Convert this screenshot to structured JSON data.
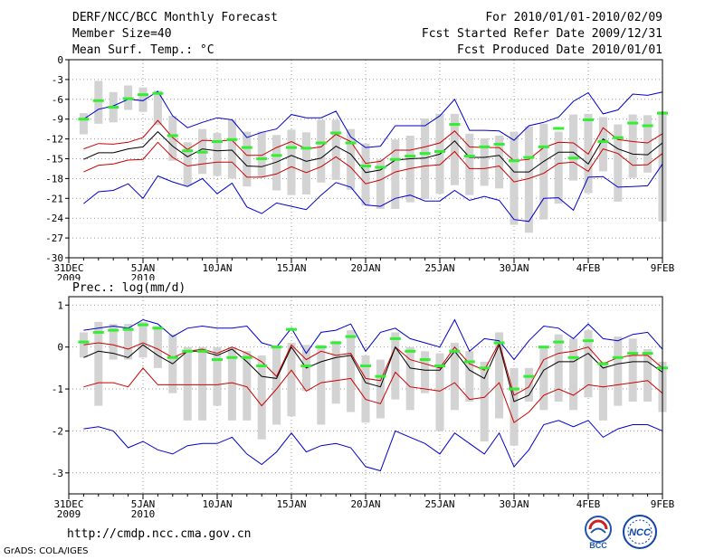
{
  "header": {
    "title": "DERF/NCC/BCC Monthly Forecast",
    "member_size": "Member Size=40",
    "variable": "Mean Surf. Temp.: °C",
    "period": "For 2010/01/01-2010/02/09",
    "start_date": "Fcst Started Refer Date 2009/12/31",
    "produced_date": "Fcst Produced Date 2010/01/01"
  },
  "precip_label": "Prec.: log(mm/d)",
  "url": "http://cmdp.ncc.cma.gov.cn",
  "credit": "GrADS: COLA/IGES",
  "logos": {
    "bcc": "BCC",
    "ncc": "NCC"
  },
  "colors": {
    "blue": "#0000cc",
    "red": "#cc0000",
    "mean": "#000000",
    "box": "#d3d3d3",
    "obs": "#33ee33",
    "grid": "#999999"
  },
  "chart_data": [
    {
      "type": "line",
      "name": "temperature",
      "title": "Mean Surf. Temp.: °C",
      "ylabel": "°C",
      "ylim": [
        -30,
        0
      ],
      "y_ticks": [
        0,
        -3,
        -6,
        -9,
        -12,
        -15,
        -18,
        -21,
        -24,
        -27,
        -30
      ],
      "x_range": [
        0,
        40
      ],
      "x_ticks": [
        {
          "x": 0,
          "label": "31DEC",
          "sub": "2009"
        },
        {
          "x": 5,
          "label": "5JAN",
          "sub": "2010"
        },
        {
          "x": 10,
          "label": "10JAN"
        },
        {
          "x": 15,
          "label": "15JAN"
        },
        {
          "x": 20,
          "label": "20JAN"
        },
        {
          "x": 25,
          "label": "25JAN"
        },
        {
          "x": 30,
          "label": "30JAN"
        },
        {
          "x": 35,
          "label": "4FEB"
        },
        {
          "x": 40,
          "label": "9FEB"
        }
      ],
      "x": [
        1,
        2,
        3,
        4,
        5,
        6,
        7,
        8,
        9,
        10,
        11,
        12,
        13,
        14,
        15,
        16,
        17,
        18,
        19,
        20,
        21,
        22,
        23,
        24,
        25,
        26,
        27,
        28,
        29,
        30,
        31,
        32,
        33,
        34,
        35,
        36,
        37,
        38,
        39,
        40
      ],
      "series": [
        {
          "name": "max",
          "color": "blue",
          "values": [
            -9,
            -7.5,
            -7,
            -6,
            -6.2,
            -4.8,
            -8.5,
            -10.3,
            -9.5,
            -8.8,
            -9.1,
            -11.8,
            -11,
            -10.5,
            -8.3,
            -8.8,
            -8.8,
            -7.8,
            -11.7,
            -13.3,
            -13.1,
            -10,
            -10,
            -10,
            -8.5,
            -6,
            -10.7,
            -10.7,
            -10.8,
            -12.2,
            -10,
            -9.5,
            -8.7,
            -6.3,
            -5,
            -8.2,
            -7.6,
            -5.2,
            -5.4,
            -4.9
          ]
        },
        {
          "name": "p80",
          "color": "red",
          "values": [
            -13.5,
            -12.7,
            -12.8,
            -12.5,
            -11.8,
            -9.2,
            -11.8,
            -13.6,
            -12.2,
            -12.3,
            -12.2,
            -14.5,
            -14.5,
            -13.3,
            -12.4,
            -13.5,
            -13.2,
            -11.3,
            -12.4,
            -15.7,
            -15.4,
            -13.7,
            -13.7,
            -13.2,
            -12.6,
            -10.8,
            -13.2,
            -13.3,
            -13.3,
            -15.3,
            -15.1,
            -13.3,
            -12.5,
            -12.6,
            -14.3,
            -10.3,
            -12.1,
            -12.4,
            -12.6,
            -11.2
          ]
        },
        {
          "name": "mean",
          "color": "mean",
          "values": [
            -15.1,
            -14.1,
            -14.1,
            -13.5,
            -13.2,
            -10.9,
            -13.1,
            -14.7,
            -13.5,
            -13.8,
            -13.7,
            -16.1,
            -16.2,
            -15.5,
            -14.5,
            -15.4,
            -14.9,
            -13.1,
            -14.3,
            -17.1,
            -16.7,
            -15.2,
            -15,
            -14.9,
            -14.3,
            -12.3,
            -14.8,
            -14.8,
            -14.5,
            -17,
            -17,
            -15.4,
            -14,
            -14,
            -15.8,
            -12,
            -13.5,
            -14.3,
            -14.4,
            -12.6
          ]
        },
        {
          "name": "p20",
          "color": "red",
          "values": [
            -17,
            -16,
            -15.8,
            -15.2,
            -15.1,
            -12.5,
            -14.8,
            -16.1,
            -15.8,
            -15.5,
            -15.5,
            -17.8,
            -17.8,
            -17.3,
            -16.2,
            -17.1,
            -16.2,
            -14.7,
            -16.3,
            -18.8,
            -18.2,
            -17,
            -16.5,
            -16.1,
            -15.9,
            -13.9,
            -16.5,
            -16.5,
            -16.1,
            -18.5,
            -18,
            -17.2,
            -15.7,
            -15.5,
            -16.9,
            -13.5,
            -14.2,
            -16,
            -15.9,
            -14.2
          ]
        },
        {
          "name": "min",
          "color": "blue",
          "values": [
            -21.8,
            -20,
            -19.8,
            -18.8,
            -21,
            -17.6,
            -18.5,
            -19.2,
            -18,
            -20.3,
            -18.7,
            -22.3,
            -23.3,
            -21.7,
            -22.2,
            -22.7,
            -20.5,
            -18.6,
            -19.3,
            -22,
            -22.2,
            -21,
            -20.5,
            -21.4,
            -21.4,
            -19.8,
            -21.3,
            -20.7,
            -21.3,
            -24.2,
            -24.5,
            -21,
            -20.9,
            -22.8,
            -17.8,
            -17.7,
            -19.3,
            -19.2,
            -19.1,
            -15.8
          ]
        }
      ],
      "box_bounds": [
        {
          "low": -11.3,
          "high": -8.1
        },
        {
          "low": -9.7,
          "high": -3.2
        },
        {
          "low": -9.5,
          "high": -4.9
        },
        {
          "low": -7.6,
          "high": -3.9
        },
        {
          "low": -7.9,
          "high": -4.2
        },
        {
          "low": -9.9,
          "high": -4.7
        },
        {
          "low": -15.3,
          "high": -8.5
        },
        {
          "low": -19.1,
          "high": -12.5
        },
        {
          "low": -17.3,
          "high": -10.5
        },
        {
          "low": -17.6,
          "high": -11.1
        },
        {
          "low": -18,
          "high": -9.1
        },
        {
          "low": -19.2,
          "high": -10.9
        },
        {
          "low": -17.8,
          "high": -10.9
        },
        {
          "low": -19.8,
          "high": -11.4
        },
        {
          "low": -20.5,
          "high": -10.6
        },
        {
          "low": -20.4,
          "high": -11
        },
        {
          "low": -18.6,
          "high": -9.1
        },
        {
          "low": -18.2,
          "high": -9.1
        },
        {
          "low": -19.7,
          "high": -10.5
        },
        {
          "low": -22.1,
          "high": -12.7
        },
        {
          "low": -22.6,
          "high": -15.1
        },
        {
          "low": -22.6,
          "high": -12.1
        },
        {
          "low": -21.6,
          "high": -11.5
        },
        {
          "low": -21.1,
          "high": -8.9
        },
        {
          "low": -20.3,
          "high": -8.2
        },
        {
          "low": -19,
          "high": -8.2
        },
        {
          "low": -20.5,
          "high": -11.2
        },
        {
          "low": -19.1,
          "high": -11.9
        },
        {
          "low": -19.5,
          "high": -11.5
        },
        {
          "low": -25,
          "high": -10.9
        },
        {
          "low": -26.2,
          "high": -10.1
        },
        {
          "low": -24.2,
          "high": -9.7
        },
        {
          "low": -21.8,
          "high": -10.9
        },
        {
          "low": -18.3,
          "high": -8.3
        },
        {
          "low": -20.2,
          "high": -8.2
        },
        {
          "low": -16.9,
          "high": -8.7
        },
        {
          "low": -21.5,
          "high": -9.8
        },
        {
          "low": -17.9,
          "high": -8.3
        },
        {
          "low": -17.1,
          "high": -8.4
        },
        {
          "low": -24.5,
          "high": -7.8
        }
      ],
      "obs": [
        -9,
        -6.2,
        -7.2,
        -5.9,
        -5.3,
        -5.1,
        -11.5,
        -13.8,
        -14,
        -12.4,
        -12.1,
        -13.3,
        -15,
        -14.5,
        -13.3,
        -13.4,
        -12.6,
        -11.1,
        -12.6,
        -16.1,
        -16.3,
        -15.1,
        -14.6,
        -14.2,
        -13.9,
        -9.8,
        -14.6,
        -13.2,
        -12.8,
        -15.3,
        -14.8,
        -13.2,
        -10.4,
        -14.9,
        -9.1,
        -12.4,
        -11.8,
        -9.6,
        -10,
        -8.1
      ]
    },
    {
      "type": "line",
      "name": "precipitation",
      "title": "Prec.: log(mm/d)",
      "ylabel": "log(mm/d)",
      "ylim": [
        -3.5,
        1.2
      ],
      "y_ticks": [
        1,
        0,
        -1,
        -2,
        -3
      ],
      "x_range": [
        0,
        40
      ],
      "x_ticks": [
        {
          "x": 0,
          "label": "31DEC",
          "sub": "2009"
        },
        {
          "x": 5,
          "label": "5JAN",
          "sub": "2010"
        },
        {
          "x": 10,
          "label": "10JAN"
        },
        {
          "x": 15,
          "label": "15JAN"
        },
        {
          "x": 20,
          "label": "20JAN"
        },
        {
          "x": 25,
          "label": "25JAN"
        },
        {
          "x": 30,
          "label": "30JAN"
        },
        {
          "x": 35,
          "label": "4FEB"
        },
        {
          "x": 40,
          "label": "9FEB"
        }
      ],
      "x": [
        1,
        2,
        3,
        4,
        5,
        6,
        7,
        8,
        9,
        10,
        11,
        12,
        13,
        14,
        15,
        16,
        17,
        18,
        19,
        20,
        21,
        22,
        23,
        24,
        25,
        26,
        27,
        28,
        29,
        30,
        31,
        32,
        33,
        34,
        35,
        36,
        37,
        38,
        39,
        40
      ],
      "series": [
        {
          "name": "max",
          "color": "blue",
          "values": [
            0.4,
            0.45,
            0.5,
            0.45,
            0.65,
            0.55,
            0.25,
            0.45,
            0.5,
            0.45,
            0.45,
            0.5,
            0.1,
            0.0,
            0.45,
            -0.15,
            0.35,
            0.4,
            0.55,
            -0.1,
            0.35,
            0.45,
            0.2,
            0.1,
            0.0,
            0.65,
            -0.1,
            0.2,
            0.15,
            -0.3,
            0.15,
            0.5,
            0.45,
            0.2,
            0.55,
            0.2,
            0.15,
            0.3,
            0.35,
            -0.05
          ]
        },
        {
          "name": "p80",
          "color": "red",
          "values": [
            0.05,
            0.1,
            0.05,
            -0.05,
            0.1,
            -0.05,
            -0.25,
            -0.1,
            -0.05,
            -0.15,
            0.0,
            -0.15,
            -0.35,
            -0.7,
            0.05,
            -0.3,
            -0.1,
            -0.2,
            -0.15,
            -0.75,
            -0.8,
            0.0,
            -0.3,
            -0.4,
            -0.5,
            0.0,
            -0.4,
            -0.55,
            0.1,
            -1.15,
            -0.95,
            -0.3,
            -0.15,
            -0.1,
            0.0,
            -0.4,
            -0.25,
            -0.2,
            -0.2,
            -0.5
          ]
        },
        {
          "name": "mean",
          "color": "mean",
          "values": [
            -0.25,
            -0.1,
            -0.15,
            -0.25,
            0.05,
            -0.2,
            -0.4,
            -0.1,
            -0.1,
            -0.2,
            -0.05,
            -0.35,
            -0.7,
            -0.75,
            0.0,
            -0.5,
            -0.35,
            -0.25,
            -0.2,
            -0.85,
            -0.95,
            0.0,
            -0.5,
            -0.55,
            -0.55,
            -0.1,
            -0.55,
            -0.75,
            0.05,
            -1.3,
            -1.15,
            -0.55,
            -0.35,
            -0.35,
            -0.15,
            -0.5,
            -0.4,
            -0.35,
            -0.35,
            -0.6
          ]
        },
        {
          "name": "p20",
          "color": "red",
          "values": [
            -0.95,
            -0.85,
            -0.85,
            -0.95,
            -0.5,
            -0.9,
            -0.9,
            -0.9,
            -0.9,
            -0.9,
            -0.85,
            -0.95,
            -1.4,
            -1.0,
            -0.55,
            -1.05,
            -0.85,
            -0.8,
            -0.75,
            -1.25,
            -1.35,
            -0.6,
            -0.95,
            -1.0,
            -1.05,
            -0.85,
            -1.25,
            -1.2,
            -0.85,
            -1.8,
            -1.55,
            -1.15,
            -1.0,
            -1.15,
            -0.9,
            -0.95,
            -0.9,
            -0.85,
            -0.8,
            -1.1
          ]
        },
        {
          "name": "min",
          "color": "blue",
          "values": [
            -1.95,
            -1.9,
            -2.0,
            -2.4,
            -2.25,
            -2.45,
            -2.55,
            -2.35,
            -2.3,
            -2.3,
            -2.15,
            -2.55,
            -2.8,
            -2.5,
            -2.05,
            -2.5,
            -2.35,
            -2.3,
            -2.4,
            -2.85,
            -2.95,
            -2.0,
            -2.15,
            -2.3,
            -2.55,
            -2.05,
            -2.3,
            -2.55,
            -2.05,
            -2.85,
            -2.45,
            -1.85,
            -1.75,
            -1.9,
            -1.75,
            -2.15,
            -1.95,
            -1.85,
            -1.85,
            -2.0
          ]
        }
      ],
      "box_bounds": [
        {
          "low": -0.25,
          "high": 0.35
        },
        {
          "low": -1.4,
          "high": 0.6
        },
        {
          "low": -0.3,
          "high": 0.55
        },
        {
          "low": -0.3,
          "high": 0.55
        },
        {
          "low": -0.25,
          "high": 0.6
        },
        {
          "low": -0.5,
          "high": 0.5
        },
        {
          "low": -1.1,
          "high": 0.3
        },
        {
          "low": -1.75,
          "high": 0.0
        },
        {
          "low": -1.75,
          "high": 0.0
        },
        {
          "low": -1.4,
          "high": 0.0
        },
        {
          "low": -1.75,
          "high": 0.0
        },
        {
          "low": -1.75,
          "high": -0.1
        },
        {
          "low": -2.2,
          "high": -0.2
        },
        {
          "low": -1.85,
          "high": 0.0
        },
        {
          "low": -1.65,
          "high": 0.1
        },
        {
          "low": -1.05,
          "high": 0.05
        },
        {
          "low": -1.85,
          "high": 0.05
        },
        {
          "low": -1.35,
          "high": 0.15
        },
        {
          "low": -1.55,
          "high": 0.4
        },
        {
          "low": -1.8,
          "high": -0.2
        },
        {
          "low": -1.7,
          "high": -0.3
        },
        {
          "low": -1.25,
          "high": 0.35
        },
        {
          "low": -1.5,
          "high": 0.0
        },
        {
          "low": -1.1,
          "high": -0.1
        },
        {
          "low": -2.0,
          "high": -0.15
        },
        {
          "low": -1.5,
          "high": 0.1
        },
        {
          "low": -1.3,
          "high": -0.1
        },
        {
          "low": -2.25,
          "high": -0.35
        },
        {
          "low": -1.7,
          "high": 0.35
        },
        {
          "low": -2.35,
          "high": -0.5
        },
        {
          "low": -1.3,
          "high": -0.5
        },
        {
          "low": -1.5,
          "high": 0.0
        },
        {
          "low": -1.3,
          "high": 0.3
        },
        {
          "low": -1.5,
          "high": 0.2
        },
        {
          "low": -1.2,
          "high": 0.4
        },
        {
          "low": -1.75,
          "high": -0.35
        },
        {
          "low": -1.4,
          "high": 0.25
        },
        {
          "low": -1.3,
          "high": 0.2
        },
        {
          "low": -1.3,
          "high": -0.05
        },
        {
          "low": -1.55,
          "high": -0.35
        }
      ],
      "obs": [
        0.12,
        0.35,
        0.4,
        0.42,
        0.53,
        0.45,
        -0.25,
        -0.1,
        -0.1,
        -0.3,
        -0.25,
        -0.25,
        -0.45,
        0.0,
        0.42,
        -0.45,
        0.0,
        0.1,
        0.25,
        -0.45,
        -0.7,
        0.2,
        -0.1,
        -0.3,
        -0.45,
        -0.1,
        -0.35,
        -0.5,
        0.1,
        -1.0,
        -0.7,
        0.0,
        0.12,
        -0.25,
        0.15,
        -0.4,
        -0.25,
        -0.15,
        -0.15,
        -0.5
      ]
    }
  ]
}
